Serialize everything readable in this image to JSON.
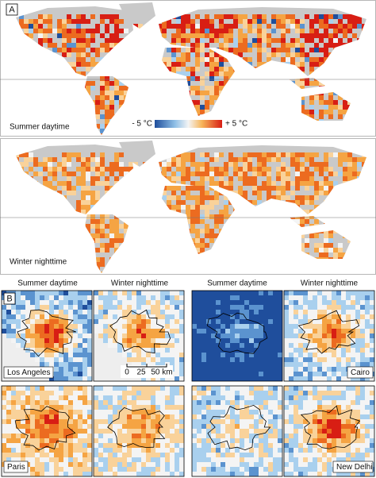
{
  "panel_a": {
    "label": "A",
    "maps": [
      {
        "caption": "Summer daytime"
      },
      {
        "caption": "Winter nighttime"
      }
    ],
    "colorbar": {
      "min_label": "- 5 °C",
      "max_label": "+ 5 °C"
    }
  },
  "panel_b": {
    "label": "B",
    "groups": [
      {
        "headers": [
          "Summer daytime",
          "Winter nighttime"
        ],
        "cities": [
          "Los Angeles",
          "Paris"
        ]
      },
      {
        "headers": [
          "Summer daytime",
          "Winter nighttime"
        ],
        "cities": [
          "Cairo",
          "New Delhi"
        ]
      }
    ],
    "scale_bar": [
      "0",
      "25",
      "50 km"
    ]
  }
}
